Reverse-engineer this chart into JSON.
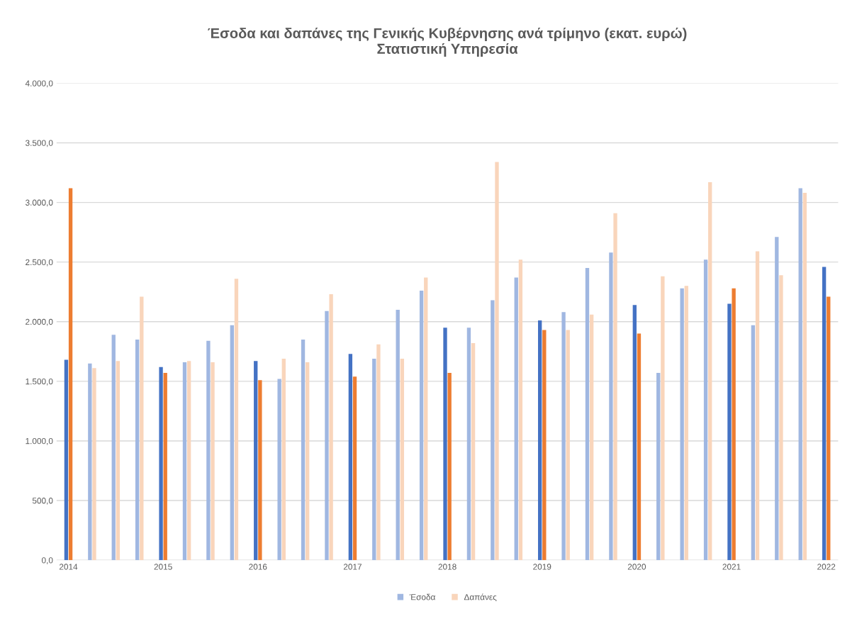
{
  "chart_data": {
    "type": "bar",
    "title": "Έσοδα και δαπάνες της Γενικής Κυβέρνησης ανά τρίμηνο (εκατ. ευρώ)\nΣτατιστική Υπηρεσία",
    "categories": [
      "2014",
      null,
      null,
      null,
      "2015",
      null,
      null,
      null,
      "2016",
      null,
      null,
      null,
      "2017",
      null,
      null,
      null,
      "2018",
      null,
      null,
      null,
      "2019",
      null,
      null,
      null,
      "2020",
      null,
      null,
      null,
      "2021",
      null,
      null,
      null,
      "2022"
    ],
    "series": [
      {
        "name": "Έσοδα",
        "color": "#a0b7e1",
        "values": [
          1680,
          1650,
          1890,
          1850,
          1620,
          1660,
          1840,
          1970,
          1670,
          1520,
          1850,
          2090,
          1730,
          1690,
          2100,
          2260,
          1950,
          1950,
          2180,
          2370,
          2010,
          2080,
          2450,
          2580,
          2140,
          1570,
          2280,
          2520,
          2150,
          1970,
          2710,
          3120,
          2460
        ],
        "colors": [
          "#4472c4",
          "#a0b7e1",
          "#a0b7e1",
          "#a0b7e1",
          "#4472c4",
          "#a0b7e1",
          "#a0b7e1",
          "#a0b7e1",
          "#4472c4",
          "#a0b7e1",
          "#a0b7e1",
          "#a0b7e1",
          "#4472c4",
          "#a0b7e1",
          "#a0b7e1",
          "#a0b7e1",
          "#4472c4",
          "#a0b7e1",
          "#a0b7e1",
          "#a0b7e1",
          "#4472c4",
          "#a0b7e1",
          "#a0b7e1",
          "#a0b7e1",
          "#4472c4",
          "#a0b7e1",
          "#a0b7e1",
          "#a0b7e1",
          "#4472c4",
          "#a0b7e1",
          "#a0b7e1",
          "#a0b7e1",
          "#4472c4"
        ]
      },
      {
        "name": "Δαπάνες",
        "color": "#f9d5bb",
        "values": [
          3120,
          1610,
          1670,
          2210,
          1570,
          1670,
          1660,
          2360,
          1510,
          1690,
          1660,
          2230,
          1540,
          1810,
          1690,
          2370,
          1570,
          1820,
          3340,
          2520,
          1930,
          1930,
          2060,
          2910,
          1900,
          2380,
          2300,
          3170,
          2280,
          2590,
          2390,
          3080,
          2210
        ],
        "colors": [
          "#ed7d31",
          "#f9d5bb",
          "#f9d5bb",
          "#f9d5bb",
          "#ed7d31",
          "#f9d5bb",
          "#f9d5bb",
          "#f9d5bb",
          "#ed7d31",
          "#f9d5bb",
          "#f9d5bb",
          "#f9d5bb",
          "#ed7d31",
          "#f9d5bb",
          "#f9d5bb",
          "#f9d5bb",
          "#ed7d31",
          "#f9d5bb",
          "#f9d5bb",
          "#f9d5bb",
          "#ed7d31",
          "#f9d5bb",
          "#f9d5bb",
          "#f9d5bb",
          "#ed7d31",
          "#f9d5bb",
          "#f9d5bb",
          "#f9d5bb",
          "#ed7d31",
          "#f9d5bb",
          "#f9d5bb",
          "#f9d5bb",
          "#ed7d31"
        ]
      }
    ],
    "ylim": [
      0,
      4000
    ],
    "yticks": [
      {
        "value": 0,
        "label": "0,0"
      },
      {
        "value": 500,
        "label": "500,0"
      },
      {
        "value": 1000,
        "label": "1.000,0"
      },
      {
        "value": 1500,
        "label": "1.500,0"
      },
      {
        "value": 2000,
        "label": "2.000,0"
      },
      {
        "value": 2500,
        "label": "2.500,0"
      },
      {
        "value": 3000,
        "label": "3.000,0"
      },
      {
        "value": 3500,
        "label": "3.500,0"
      },
      {
        "value": 4000,
        "label": "4.000,0"
      }
    ],
    "grid": "y",
    "legend": "bottom"
  }
}
